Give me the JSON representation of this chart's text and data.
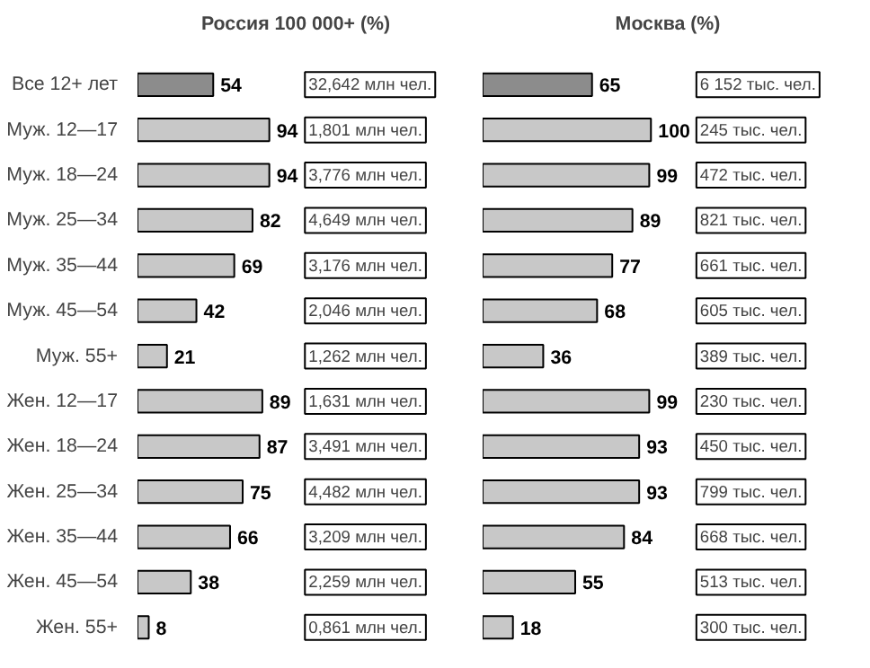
{
  "chart_data": [
    {
      "type": "bar",
      "orientation": "horizontal",
      "title": "Россия 100 000+ (%)",
      "categories": [
        "Все 12+ лет",
        "Муж. 12—17",
        "Муж. 18—24",
        "Муж. 25—34",
        "Муж. 35—44",
        "Муж. 45—54",
        "Муж. 55+",
        "Жен. 12—17",
        "Жен. 18—24",
        "Жен. 25—34",
        "Жен. 35—44",
        "Жен. 45—54",
        "Жен. 55+"
      ],
      "values": [
        54,
        94,
        94,
        82,
        69,
        42,
        21,
        89,
        87,
        75,
        66,
        38,
        8
      ],
      "colors": [
        "#8c8c8c",
        "#c8c8c8",
        "#c8c8c8",
        "#c8c8c8",
        "#c8c8c8",
        "#c8c8c8",
        "#c8c8c8",
        "#c8c8c8",
        "#c8c8c8",
        "#c8c8c8",
        "#c8c8c8",
        "#c8c8c8",
        "#c8c8c8"
      ],
      "data_labels": true,
      "annotations": [
        "32,642 млн чел.",
        "1,801 млн чел.",
        "3,776 млн чел.",
        "4,649 млн чел.",
        "3,176 млн чел.",
        "2,046 млн чел.",
        "1,262 млн чел.",
        "1,631 млн чел.",
        "3,491 млн чел.",
        "4,482 млн чел.",
        "3,209 млн чел.",
        "2,259 млн чел.",
        "0,861 млн чел."
      ]
    },
    {
      "type": "bar",
      "orientation": "horizontal",
      "title": "Москва (%)",
      "tick_labels": false,
      "categories": [
        null,
        null,
        null,
        null,
        null,
        null,
        null,
        null,
        null,
        null,
        null,
        null,
        null
      ],
      "values": [
        65,
        100,
        99,
        89,
        77,
        68,
        36,
        99,
        93,
        93,
        84,
        55,
        18
      ],
      "colors": [
        "#8c8c8c",
        "#c8c8c8",
        "#c8c8c8",
        "#c8c8c8",
        "#c8c8c8",
        "#c8c8c8",
        "#c8c8c8",
        "#c8c8c8",
        "#c8c8c8",
        "#c8c8c8",
        "#c8c8c8",
        "#c8c8c8",
        "#c8c8c8"
      ],
      "data_labels": true,
      "annotations": [
        "6 152 тыс. чел.",
        "245 тыс. чел.",
        "472 тыс. чел.",
        "821 тыс. чел.",
        "661 тыс. чел.",
        "605 тыс. чел.",
        "389 тыс. чел.",
        "230 тыс. чел.",
        "450 тыс. чел.",
        "799 тыс. чел.",
        "668 тыс. чел.",
        "513 тыс. чел.",
        "300 тыс. чел."
      ]
    }
  ]
}
